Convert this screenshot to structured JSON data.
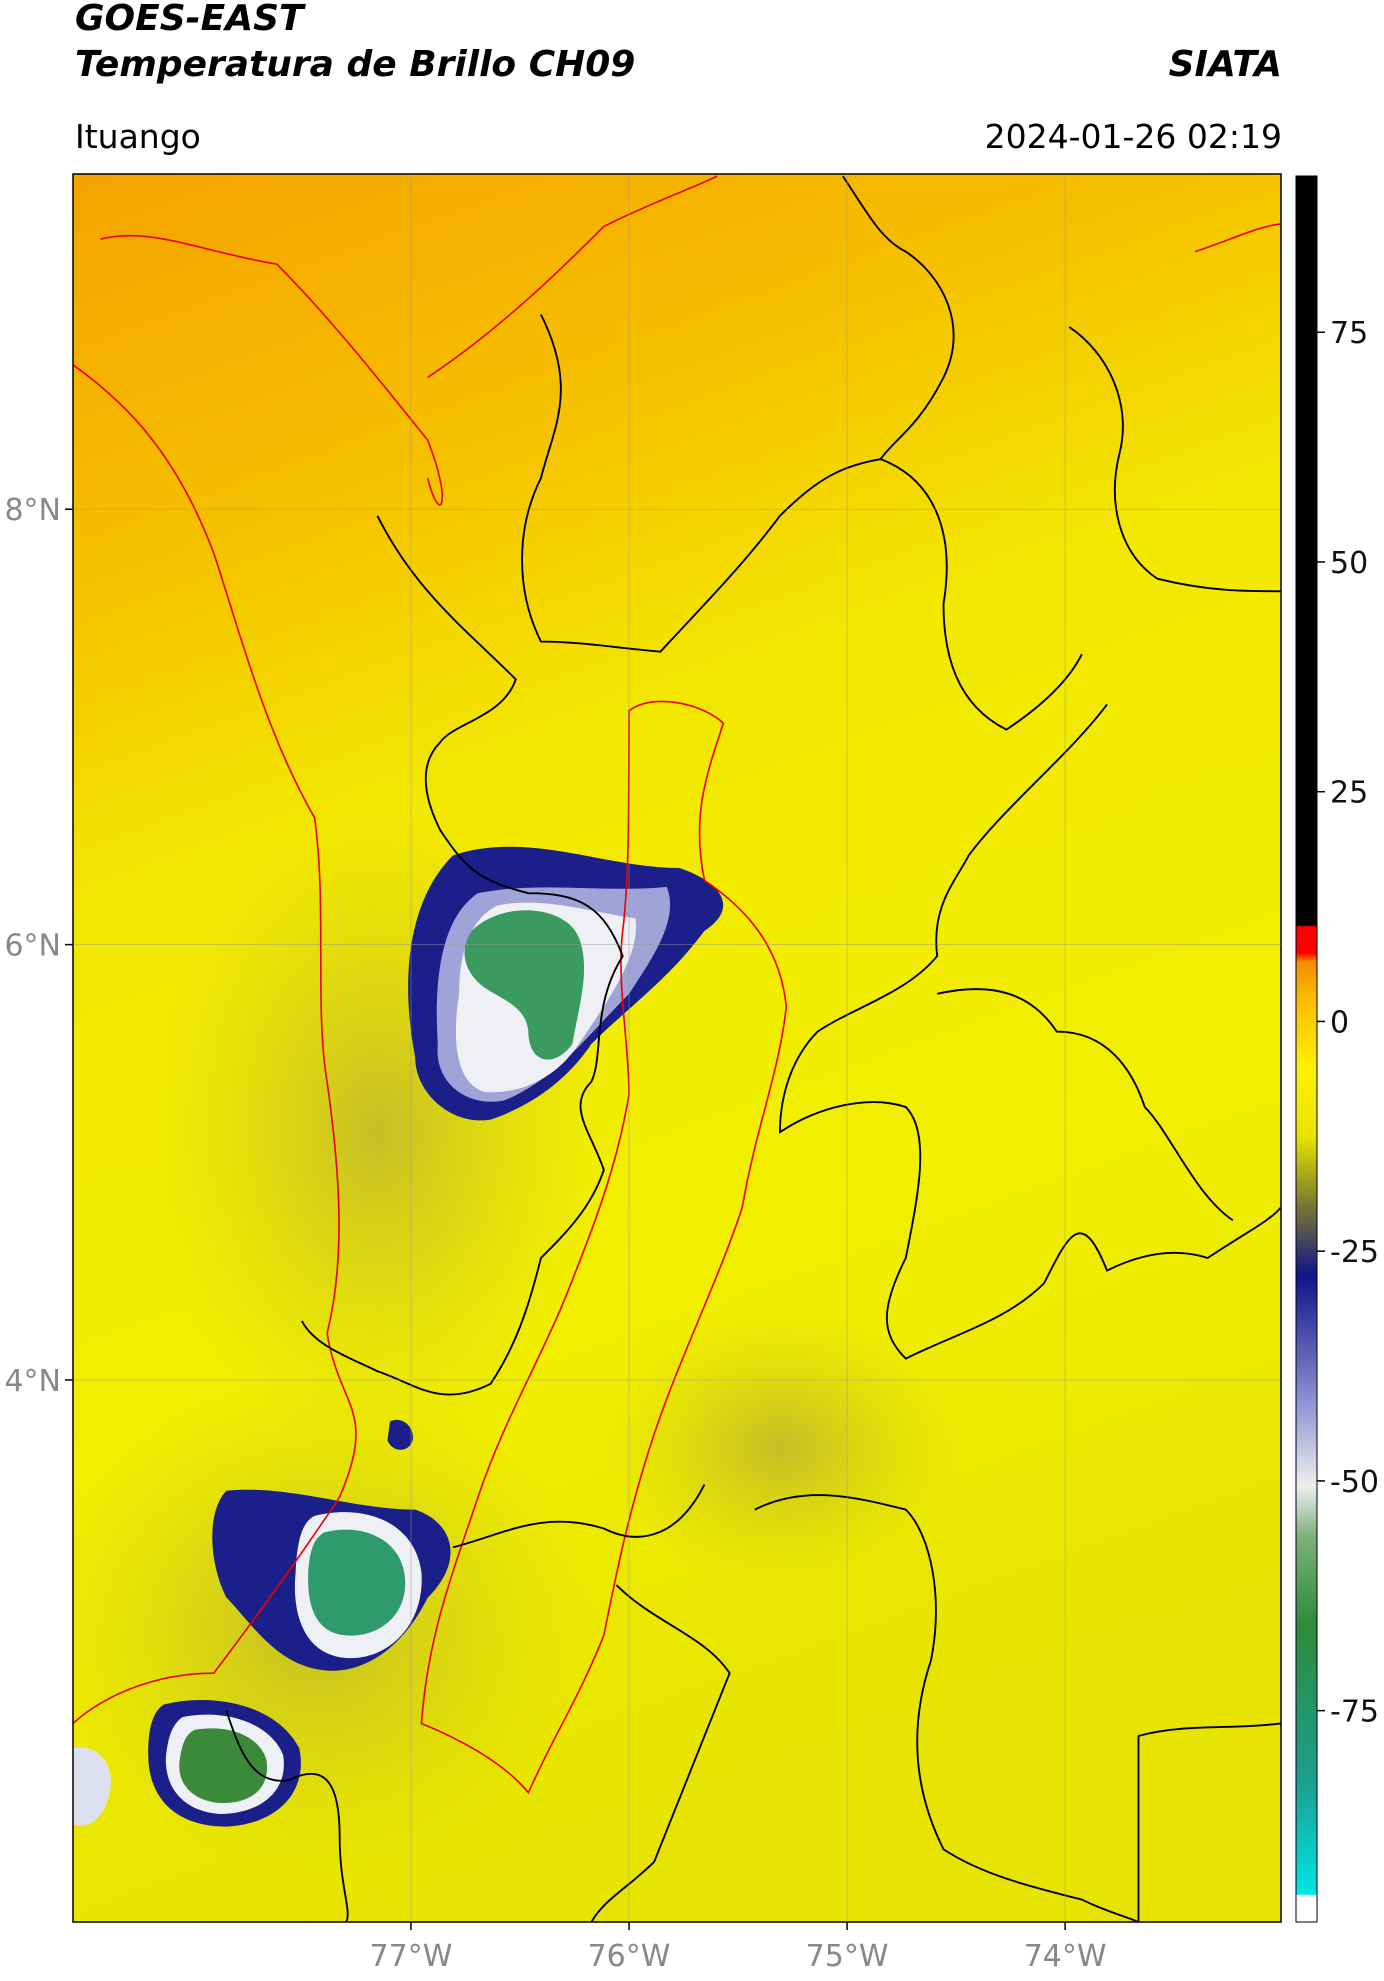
{
  "header": {
    "title": "GOES-EAST",
    "subtitle": "Temperatura de Brillo CH09",
    "source": "SIATA",
    "location": "Ituango",
    "datetime": "2024-01-26 02:19"
  },
  "map": {
    "xlim": [
      -78.55,
      -73.01
    ],
    "ylim": [
      1.51,
      9.54
    ],
    "grid": true,
    "xticks": [
      {
        "value": -77,
        "label": "77°W"
      },
      {
        "value": -76,
        "label": "76°W"
      },
      {
        "value": -75,
        "label": "75°W"
      },
      {
        "value": -74,
        "label": "74°W"
      }
    ],
    "yticks": [
      {
        "value": 8,
        "label": "8°N"
      },
      {
        "value": 6,
        "label": "6°N"
      },
      {
        "value": 4,
        "label": "4°N"
      }
    ]
  },
  "colorbar": {
    "lim": [
      -98,
      92
    ],
    "ticks": [
      75,
      50,
      25,
      0,
      -25,
      -50,
      -75
    ]
  }
}
